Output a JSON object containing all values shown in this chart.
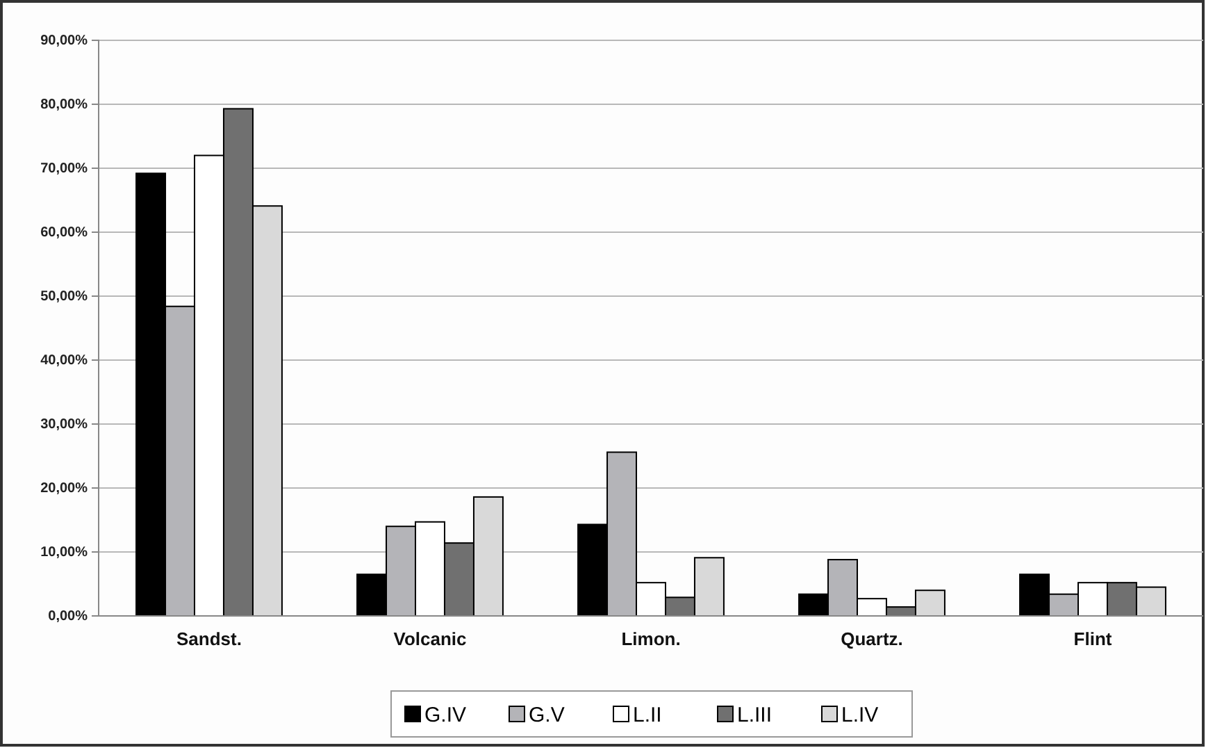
{
  "chart_data": {
    "type": "bar",
    "categories": [
      "Sandst.",
      "Volcanic",
      "Limon.",
      "Quartz.",
      "Flint"
    ],
    "series": [
      {
        "name": "G.IV",
        "color": "#000000",
        "values": [
          69.2,
          6.5,
          14.3,
          3.4,
          6.5
        ]
      },
      {
        "name": "G.V",
        "color": "#b4b4b8",
        "values": [
          48.4,
          14.0,
          25.6,
          8.8,
          3.4
        ]
      },
      {
        "name": "L.II",
        "color": "#ffffff",
        "values": [
          72.0,
          14.7,
          5.2,
          2.7,
          5.2
        ]
      },
      {
        "name": "L.III",
        "color": "#707070",
        "values": [
          79.3,
          11.4,
          2.9,
          1.4,
          5.2
        ]
      },
      {
        "name": "L.IV",
        "color": "#d9d9d9",
        "values": [
          64.1,
          18.6,
          9.1,
          4.0,
          4.5
        ]
      }
    ],
    "ylim": [
      0,
      90
    ],
    "yticks": [
      {
        "value": 0,
        "label": "0,00%"
      },
      {
        "value": 10,
        "label": "10,00%"
      },
      {
        "value": 20,
        "label": "20,00%"
      },
      {
        "value": 30,
        "label": "30,00%"
      },
      {
        "value": 40,
        "label": "40,00%"
      },
      {
        "value": 50,
        "label": "50,00%"
      },
      {
        "value": 60,
        "label": "60,00%"
      },
      {
        "value": 70,
        "label": "70,00%"
      },
      {
        "value": 80,
        "label": "80,00%"
      },
      {
        "value": 90,
        "label": "90,00%"
      }
    ],
    "grid": "y",
    "legend": "bottom"
  }
}
